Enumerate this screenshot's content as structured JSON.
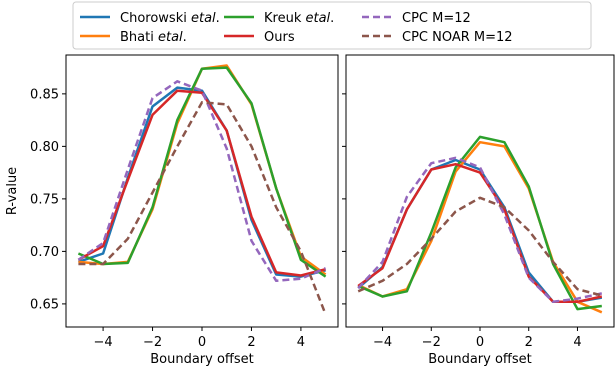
{
  "legend": {
    "items": [
      {
        "label": "Chorowski ",
        "label_italic": "etal",
        "label_suffix": ".",
        "color": "#1f77b4",
        "dashed": false
      },
      {
        "label": "Bhati ",
        "label_italic": "etal",
        "label_suffix": ".",
        "color": "#ff7f0e",
        "dashed": false
      },
      {
        "label": "Kreuk ",
        "label_italic": "etal",
        "label_suffix": ".",
        "color": "#2ca02c",
        "dashed": false
      },
      {
        "label": "Ours",
        "label_italic": "",
        "label_suffix": "",
        "color": "#d62728",
        "dashed": false
      },
      {
        "label": "CPC M=12",
        "label_italic": "",
        "label_suffix": "",
        "color": "#9467bd",
        "dashed": true
      },
      {
        "label": "CPC NOAR M=12",
        "label_italic": "",
        "label_suffix": "",
        "color": "#8c564b",
        "dashed": true
      }
    ]
  },
  "chart_data": [
    {
      "type": "line",
      "title": "",
      "xlabel": "Boundary offset",
      "ylabel": "R-value",
      "xlim": [
        -5.5,
        5.5
      ],
      "ylim": [
        0.628,
        0.887
      ],
      "xticks": [
        -4,
        -2,
        0,
        2,
        4
      ],
      "xtick_labels": [
        "−4",
        "−2",
        "0",
        "2",
        "4"
      ],
      "yticks": [
        0.65,
        0.7,
        0.75,
        0.8,
        0.85
      ],
      "ytick_labels": [
        "0.65",
        "0.70",
        "0.75",
        "0.80",
        "0.85"
      ],
      "x": [
        -5,
        -4,
        -3,
        -2,
        -1,
        0,
        1,
        2,
        3,
        4,
        5
      ],
      "series": [
        {
          "name": "Chorowski etal.",
          "values": [
            0.69,
            0.698,
            0.77,
            0.838,
            0.856,
            0.853,
            0.815,
            0.73,
            0.678,
            0.676,
            0.682
          ]
        },
        {
          "name": "Bhati etal.",
          "values": [
            0.69,
            0.688,
            0.69,
            0.74,
            0.822,
            0.874,
            0.877,
            0.84,
            0.76,
            0.695,
            0.678
          ]
        },
        {
          "name": "Kreuk etal.",
          "values": [
            0.698,
            0.688,
            0.689,
            0.742,
            0.825,
            0.874,
            0.875,
            0.841,
            0.76,
            0.692,
            0.676
          ]
        },
        {
          "name": "Ours",
          "values": [
            0.692,
            0.705,
            0.768,
            0.83,
            0.853,
            0.851,
            0.815,
            0.733,
            0.68,
            0.677,
            0.683
          ]
        },
        {
          "name": "CPC M=12",
          "values": [
            0.692,
            0.708,
            0.778,
            0.846,
            0.862,
            0.853,
            0.798,
            0.71,
            0.672,
            0.674,
            0.684
          ]
        },
        {
          "name": "CPC NOAR M=12",
          "values": [
            0.688,
            0.688,
            0.712,
            0.756,
            0.8,
            0.842,
            0.84,
            0.8,
            0.742,
            0.7,
            0.64
          ]
        }
      ]
    },
    {
      "type": "line",
      "title": "",
      "xlabel": "Boundary offset",
      "ylabel": "",
      "xlim": [
        -5.5,
        5.5
      ],
      "ylim": [
        0.628,
        0.887
      ],
      "xticks": [
        -4,
        -2,
        0,
        2,
        4
      ],
      "xtick_labels": [
        "−4",
        "−2",
        "0",
        "2",
        "4"
      ],
      "yticks": [
        0.65,
        0.7,
        0.75,
        0.8,
        0.85
      ],
      "ytick_labels": [],
      "x": [
        -5,
        -4,
        -3,
        -2,
        -1,
        0,
        1,
        2,
        3,
        4,
        5
      ],
      "series": [
        {
          "name": "Chorowski etal.",
          "values": [
            0.665,
            0.685,
            0.74,
            0.778,
            0.787,
            0.778,
            0.742,
            0.68,
            0.652,
            0.652,
            0.656
          ]
        },
        {
          "name": "Bhati etal.",
          "values": [
            0.668,
            0.657,
            0.664,
            0.71,
            0.776,
            0.804,
            0.8,
            0.76,
            0.69,
            0.652,
            0.642
          ]
        },
        {
          "name": "Kreuk etal.",
          "values": [
            0.667,
            0.657,
            0.662,
            0.718,
            0.78,
            0.809,
            0.804,
            0.762,
            0.688,
            0.645,
            0.648
          ]
        },
        {
          "name": "Ours",
          "values": [
            0.667,
            0.684,
            0.74,
            0.778,
            0.783,
            0.775,
            0.74,
            0.676,
            0.652,
            0.652,
            0.657
          ]
        },
        {
          "name": "CPC M=12",
          "values": [
            0.665,
            0.69,
            0.752,
            0.784,
            0.789,
            0.78,
            0.735,
            0.675,
            0.652,
            0.655,
            0.66
          ]
        },
        {
          "name": "CPC NOAR M=12",
          "values": [
            0.662,
            0.672,
            0.688,
            0.712,
            0.738,
            0.751,
            0.742,
            0.72,
            0.69,
            0.664,
            0.658
          ]
        }
      ]
    }
  ]
}
